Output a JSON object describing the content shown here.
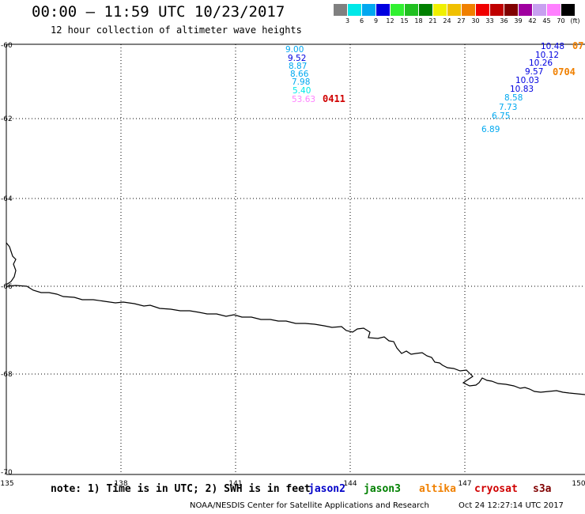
{
  "title": "00:00 – 11:59 UTC 10/23/2017",
  "subtitle": "12 hour collection of altimeter wave heights",
  "scale": {
    "unit": "(ft)",
    "labels": [
      "3",
      "6",
      "9",
      "12",
      "15",
      "18",
      "21",
      "24",
      "27",
      "30",
      "33",
      "36",
      "39",
      "42",
      "45",
      "70"
    ],
    "colors": [
      "#808080",
      "#00e8e8",
      "#00a8f0",
      "#0000e0",
      "#30f030",
      "#20c020",
      "#008000",
      "#f0f000",
      "#f0c000",
      "#f08000",
      "#f00000",
      "#c00000",
      "#800000",
      "#a000a0",
      "#c8a0f0",
      "#ff80ff",
      "#000000"
    ]
  },
  "axes": {
    "lon_ticks": [
      "135",
      "138",
      "141",
      "144",
      "147",
      "150"
    ],
    "lat_ticks": [
      "-60",
      "-62",
      "-64",
      "-66",
      "-68",
      "-70"
    ]
  },
  "track_a": {
    "values": [
      "9.00",
      "9.52",
      "8.87",
      "8.66",
      "7.98",
      "5.40",
      "53.63"
    ],
    "colors": [
      "#00a8f0",
      "#0000e0",
      "#00a8f0",
      "#00a8f0",
      "#00a8f0",
      "#00e8e8",
      "#ff80ff"
    ],
    "time": "0411",
    "time_color": "#d00000"
  },
  "track_b": {
    "values": [
      "10.48",
      "10.12",
      "10.26",
      "9.57",
      "10.03",
      "10.83",
      "8.58",
      "7.73",
      "6.75",
      "6.89"
    ],
    "colors": [
      "#0000e0",
      "#0000e0",
      "#0000e0",
      "#0000e0",
      "#0000e0",
      "#0000e0",
      "#00a8f0",
      "#00a8f0",
      "#00a8f0",
      "#00a8f0"
    ],
    "time": "0704",
    "time_color": "#f08000",
    "time_edge": "07"
  },
  "note": "note: 1) Time is in UTC; 2) SWH is in feet",
  "satellites": [
    {
      "name": "jason2",
      "color": "#0000c8"
    },
    {
      "name": "jason3",
      "color": "#008000"
    },
    {
      "name": "altika",
      "color": "#f08000"
    },
    {
      "name": "cryosat",
      "color": "#d00000"
    },
    {
      "name": "s3a",
      "color": "#800000"
    }
  ],
  "credit_left": "NOAA/NESDIS Center for Satellite Applications and Research",
  "credit_right": "Oct 24 12:27:14 UTC 2017"
}
